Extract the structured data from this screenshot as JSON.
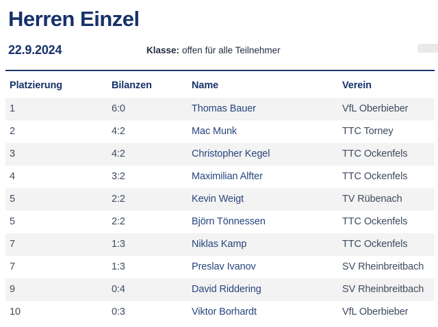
{
  "header": {
    "title": "Herren Einzel",
    "date": "22.9.2024",
    "klasse_label": "Klasse:",
    "klasse_value": "offen für alle Teilnehmer"
  },
  "table": {
    "columns": [
      "Platzierung",
      "Bilanzen",
      "Name",
      "Verein"
    ],
    "rows": [
      {
        "platzierung": "1",
        "bilanzen": "6:0",
        "name": "Thomas Bauer",
        "verein": "VfL Oberbieber"
      },
      {
        "platzierung": "2",
        "bilanzen": "4:2",
        "name": "Mac Munk",
        "verein": "TTC Torney"
      },
      {
        "platzierung": "3",
        "bilanzen": "4:2",
        "name": "Christopher Kegel",
        "verein": "TTC Ockenfels"
      },
      {
        "platzierung": "4",
        "bilanzen": "3:2",
        "name": "Maximilian Alfter",
        "verein": "TTC Ockenfels"
      },
      {
        "platzierung": "5",
        "bilanzen": "2:2",
        "name": "Kevin Weigt",
        "verein": "TV Rübenach"
      },
      {
        "platzierung": "5",
        "bilanzen": "2:2",
        "name": "Björn Tönnessen",
        "verein": "TTC Ockenfels"
      },
      {
        "platzierung": "7",
        "bilanzen": "1:3",
        "name": "Niklas Kamp",
        "verein": "TTC Ockenfels"
      },
      {
        "platzierung": "7",
        "bilanzen": "1:3",
        "name": "Preslav Ivanov",
        "verein": "SV Rheinbreitbach"
      },
      {
        "platzierung": "9",
        "bilanzen": "0:4",
        "name": "David Riddering",
        "verein": "SV Rheinbreitbach"
      },
      {
        "platzierung": "10",
        "bilanzen": "0:3",
        "name": "Viktor Borhardt",
        "verein": "VfL Oberbieber"
      }
    ]
  },
  "colors": {
    "accent_navy": "#17316a",
    "name_blue": "#28457d",
    "cell_text": "#3e4a5e",
    "alt_row_bg": "#f3f3f3"
  }
}
